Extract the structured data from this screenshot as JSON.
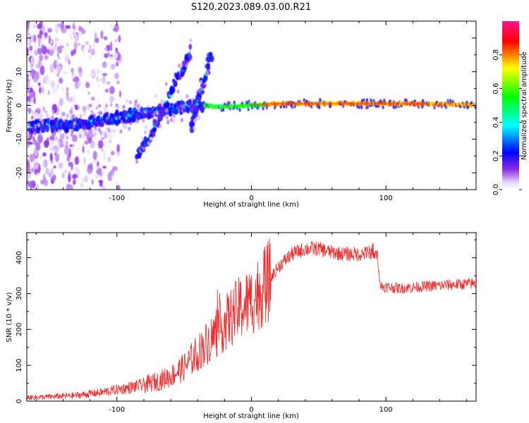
{
  "figure": {
    "title": "S120.2023.089.03.00.R21"
  },
  "chart_data": [
    {
      "type": "heatmap",
      "xlabel": "Height of straight line (km)",
      "ylabel": "Frequency (Hz)",
      "xlim": [
        -167,
        167
      ],
      "ylim": [
        -25,
        25
      ],
      "xticks": [
        -100,
        0,
        100
      ],
      "yticks": [
        -20,
        -10,
        0,
        10,
        20
      ],
      "grid": false,
      "colorbar": {
        "label": "Normalized spectral amplitude",
        "range": [
          0,
          1
        ],
        "ticks": [
          "0.0",
          "0.2",
          "0.4",
          "0.6",
          "0.8"
        ],
        "colormap": "white-violet-blue-cyan-green-yellow-red"
      },
      "ridges": [
        {
          "x": [
            -165,
            -150,
            -135,
            -120,
            -105,
            -90,
            -75,
            -60,
            -45,
            -35
          ],
          "y": [
            -6,
            -6,
            -6,
            -5,
            -4,
            -3,
            -2,
            -1,
            0,
            0
          ]
        },
        {
          "x": [
            -35,
            -20,
            0,
            20,
            50,
            100,
            130,
            150,
            167
          ],
          "y": [
            0,
            -0.5,
            0,
            0.5,
            0.5,
            0.5,
            0.5,
            0.3,
            0
          ]
        },
        {
          "x": [
            -85,
            -75,
            -65,
            -55,
            -45
          ],
          "y": [
            -15,
            -9,
            -1,
            8,
            16
          ]
        },
        {
          "x": [
            -45,
            -40,
            -35,
            -30
          ],
          "y": [
            -6,
            1,
            8,
            15
          ]
        }
      ]
    },
    {
      "type": "line",
      "xlabel": "Height of straight line (km)",
      "ylabel": "SNR (10 * v/v)",
      "xlim": [
        -167,
        167
      ],
      "ylim": [
        0,
        470
      ],
      "xticks": [
        -100,
        0,
        100
      ],
      "yticks": [
        0,
        100,
        200,
        300,
        400
      ],
      "grid": false,
      "color": "#ee2a2a",
      "series": [
        {
          "x": [
            -167,
            -150,
            -130,
            -110,
            -100,
            -90,
            -80,
            -70,
            -60,
            -50,
            -40,
            -30,
            -20,
            -10,
            0,
            10,
            20,
            30,
            40,
            50,
            60,
            70,
            80,
            90,
            94,
            96,
            110,
            130,
            150,
            167
          ],
          "y": [
            10,
            12,
            16,
            25,
            32,
            38,
            45,
            55,
            70,
            95,
            135,
            175,
            215,
            255,
            280,
            320,
            375,
            410,
            425,
            425,
            415,
            410,
            410,
            415,
            400,
            320,
            315,
            320,
            325,
            328
          ]
        }
      ]
    }
  ]
}
